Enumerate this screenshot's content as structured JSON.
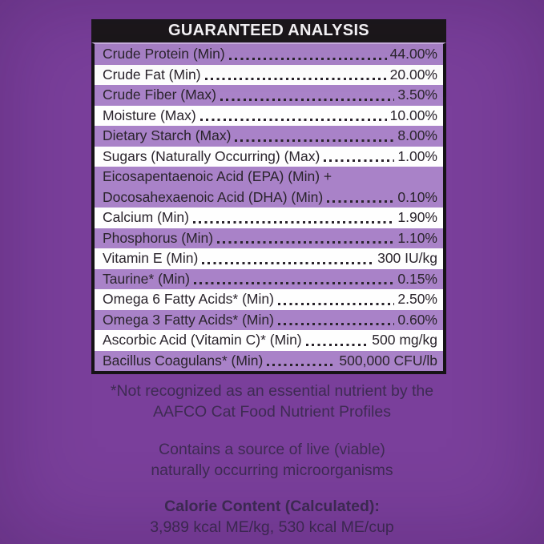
{
  "colors": {
    "page_background": "#7a3f9b",
    "header_bg": "#1b1819",
    "header_text": "#ffffff",
    "table_border": "#161316",
    "header_separator": "#cdb2e2",
    "row_purple": "#a982c8",
    "row_white": "#fefefe",
    "row_text": "#2a242c",
    "note_text": "#3e2b53"
  },
  "table": {
    "title": "GUARANTEED ANALYSIS",
    "rows": [
      {
        "label": "Crude Protein (Min)",
        "value": "44.00%"
      },
      {
        "label": "Crude Fat (Min)",
        "value": "20.00%"
      },
      {
        "label": "Crude Fiber (Max)",
        "value": "3.50%"
      },
      {
        "label": "Moisture (Max)",
        "value": "10.00%"
      },
      {
        "label": "Dietary Starch (Max)",
        "value": "8.00%"
      },
      {
        "label": "Sugars (Naturally Occurring) (Max)",
        "value": "1.00%"
      },
      {
        "label": "Eicosapentaenoic Acid (EPA) (Min) +",
        "label_line2": "Docosahexaenoic Acid (DHA) (Min)",
        "value": "0.10%"
      },
      {
        "label": "Calcium (Min)",
        "value": "1.90%"
      },
      {
        "label": "Phosphorus (Min)",
        "value": "1.10%"
      },
      {
        "label": "Vitamin E (Min)",
        "value": "300 IU/kg"
      },
      {
        "label": "Taurine* (Min)",
        "value": "0.15%"
      },
      {
        "label": "Omega 6 Fatty Acids* (Min)",
        "value": "2.50%"
      },
      {
        "label": "Omega 3 Fatty Acids* (Min)",
        "value": "0.60%"
      },
      {
        "label": "Ascorbic Acid (Vitamin C)* (Min)",
        "value": "500 mg/kg"
      },
      {
        "label": "Bacillus Coagulans* (Min)",
        "value": "500,000 CFU/lb"
      }
    ]
  },
  "footnotes": {
    "aafco_line1": "*Not recognized as an essential nutrient by the",
    "aafco_line2": "AAFCO Cat Food Nutrient Profiles",
    "live_line1": "Contains a source of live (viable)",
    "live_line2": "naturally occurring microorganisms",
    "calorie_title": "Calorie Content (Calculated):",
    "calorie_values": "3,989 kcal ME/kg, 530 kcal ME/cup"
  }
}
